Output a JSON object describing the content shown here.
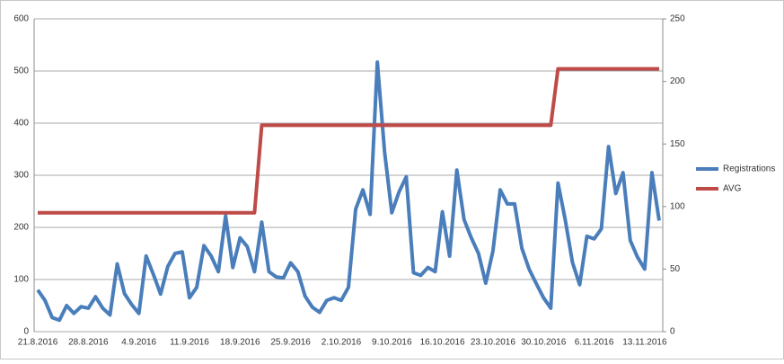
{
  "chart_data": {
    "type": "line",
    "categories": [
      "21.8.2016",
      null,
      null,
      null,
      null,
      null,
      null,
      "28.8.2016",
      null,
      null,
      null,
      null,
      null,
      null,
      "4.9.2016",
      null,
      null,
      null,
      null,
      null,
      null,
      "11.9.2016",
      null,
      null,
      null,
      null,
      null,
      null,
      "18.9.2016",
      null,
      null,
      null,
      null,
      null,
      null,
      "25.9.2016",
      null,
      null,
      null,
      null,
      null,
      null,
      "2.10.2016",
      null,
      null,
      null,
      null,
      null,
      null,
      "9.10.2016",
      null,
      null,
      null,
      null,
      null,
      null,
      "16.10.2016",
      null,
      null,
      null,
      null,
      null,
      null,
      "23.10.2016",
      null,
      null,
      null,
      null,
      null,
      null,
      "30.10.2016",
      null,
      null,
      null,
      null,
      null,
      null,
      "6.11.2016",
      null,
      null,
      null,
      null,
      null,
      null,
      "13.11.2016",
      null,
      null
    ],
    "series": [
      {
        "name": "Registrations",
        "color": "#4a7ebb",
        "values": [
          80,
          60,
          27,
          22,
          50,
          35,
          48,
          45,
          67,
          45,
          32,
          130,
          73,
          52,
          35,
          145,
          110,
          72,
          125,
          150,
          153,
          65,
          85,
          165,
          145,
          115,
          222,
          123,
          180,
          163,
          115,
          210,
          115,
          105,
          103,
          132,
          115,
          68,
          47,
          37,
          60,
          65,
          60,
          85,
          235,
          272,
          225,
          517,
          345,
          228,
          268,
          297,
          113,
          108,
          123,
          115,
          230,
          145,
          310,
          215,
          180,
          150,
          93,
          155,
          272,
          245,
          245,
          160,
          120,
          92,
          65,
          45,
          285,
          215,
          133,
          90,
          183,
          178,
          197,
          355,
          265,
          305,
          175,
          143,
          120,
          305,
          213
        ]
      },
      {
        "name": "AVG",
        "color": "#be4b48",
        "axis": "y2",
        "values": [
          95,
          95,
          95,
          95,
          95,
          95,
          95,
          95,
          95,
          95,
          95,
          95,
          95,
          95,
          95,
          95,
          95,
          95,
          95,
          95,
          95,
          95,
          95,
          95,
          95,
          95,
          95,
          95,
          95,
          95,
          95,
          165,
          165,
          165,
          165,
          165,
          165,
          165,
          165,
          165,
          165,
          165,
          165,
          165,
          165,
          165,
          165,
          165,
          165,
          165,
          165,
          165,
          165,
          165,
          165,
          165,
          165,
          165,
          165,
          165,
          165,
          165,
          165,
          165,
          165,
          165,
          165,
          165,
          165,
          165,
          165,
          165,
          210,
          210,
          210,
          210,
          210,
          210,
          210,
          210,
          210,
          210,
          210,
          210,
          210,
          210,
          210
        ]
      }
    ],
    "ylim": [
      0,
      600
    ],
    "yticks": [
      0,
      100,
      200,
      300,
      400,
      500,
      600
    ],
    "y2lim": [
      0,
      250
    ],
    "y2ticks": [
      0,
      50,
      100,
      150,
      200,
      250
    ],
    "grid": true,
    "legend": "right"
  }
}
